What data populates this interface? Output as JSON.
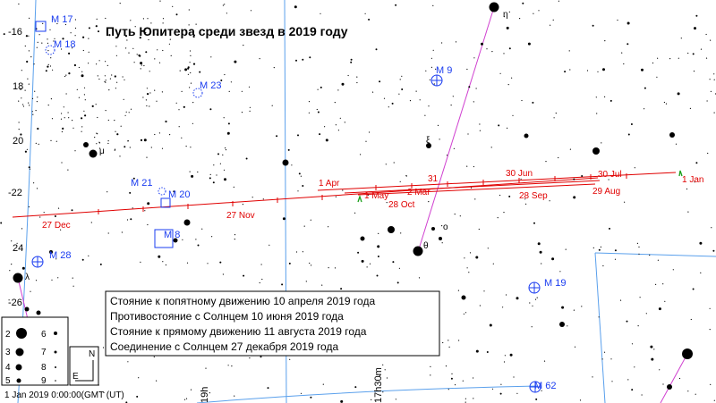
{
  "title": "Путь Юпитера среди звезд в 2019 году",
  "info_lines": [
    "Стояние к попятному движению 10 апреля 2019 года",
    "Противостояние с Солнцем 10 июня 2019 года",
    "Стояние к прямому движению 11 августа 2019 года",
    "Соединение с Солнцем 27 декабря 2019 года"
  ],
  "declination_labels": [
    "-16",
    "18",
    "20",
    "-22",
    "24",
    "-26"
  ],
  "ra_labels": [
    "19h",
    "17h30m"
  ],
  "deep_sky_objects": [
    "M 17",
    "M 18",
    "M 23",
    "M 9",
    "M 21",
    "M 20",
    "M 8",
    "M 28",
    "M 19",
    "M 62"
  ],
  "star_labels": [
    "η",
    "ξ",
    "μ",
    "θ",
    "o",
    "λ"
  ],
  "path_dates": [
    "1 Jan",
    "1 Apr",
    "31",
    "30 Jun",
    "30 Jul",
    "1 May",
    "2 Mar",
    "28 Oct",
    "28 Sep",
    "29 Aug",
    "27 Nov",
    "27 Dec"
  ],
  "magnitude_legend": [
    "2",
    "3",
    "4",
    "5",
    "6",
    "7",
    "8",
    "9"
  ],
  "compass": [
    "N",
    "E"
  ],
  "timestamp": "1 Jan 2019  0:00:00(GMT (UT)",
  "colors": {
    "path": "#e00000",
    "grid": "#5aa0ec",
    "ecliptic": "#d040d0",
    "objects": "#1a3cf0",
    "stars": "#000000"
  }
}
